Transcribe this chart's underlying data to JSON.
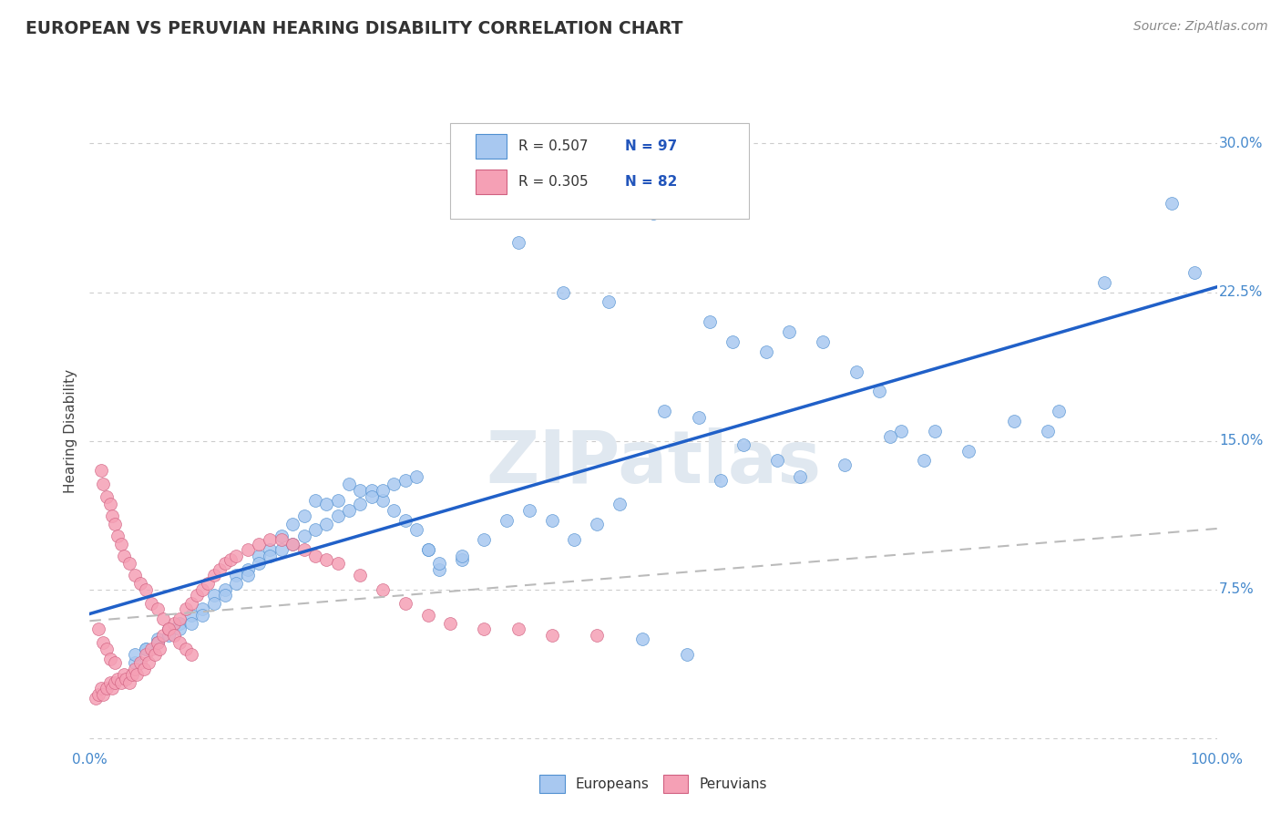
{
  "title": "EUROPEAN VS PERUVIAN HEARING DISABILITY CORRELATION CHART",
  "source": "Source: ZipAtlas.com",
  "ylabel": "Hearing Disability",
  "xlim": [
    0.0,
    1.0
  ],
  "ylim": [
    -0.005,
    0.315
  ],
  "yticks": [
    0.0,
    0.075,
    0.15,
    0.225,
    0.3
  ],
  "yticklabels_right": [
    "",
    "7.5%",
    "15.0%",
    "22.5%",
    "30.0%"
  ],
  "xticks": [
    0.0,
    0.25,
    0.5,
    0.75,
    1.0
  ],
  "xticklabels": [
    "0.0%",
    "",
    "",
    "",
    "100.0%"
  ],
  "european_R": 0.507,
  "european_N": 97,
  "peruvian_R": 0.305,
  "peruvian_N": 82,
  "european_color": "#a8c8f0",
  "european_edge_color": "#5090d0",
  "european_line_color": "#2060c8",
  "peruvian_color": "#f5a0b5",
  "peruvian_edge_color": "#d06080",
  "peruvian_line_color": "#d04060",
  "background_color": "#ffffff",
  "grid_color": "#cccccc",
  "title_color": "#333333",
  "tick_color": "#4488cc",
  "watermark": "ZIPatlas",
  "watermark_color": "#e0e8f0",
  "legend_r_color": "#333333",
  "legend_n_color": "#2255bb",
  "eu_x": [
    0.44,
    0.5,
    0.38,
    0.42,
    0.46,
    0.55,
    0.57,
    0.6,
    0.62,
    0.65,
    0.68,
    0.7,
    0.72,
    0.75,
    0.78,
    0.82,
    0.86,
    0.9,
    0.96,
    0.98,
    0.2,
    0.22,
    0.24,
    0.25,
    0.26,
    0.27,
    0.28,
    0.29,
    0.3,
    0.31,
    0.33,
    0.35,
    0.37,
    0.39,
    0.41,
    0.43,
    0.45,
    0.47,
    0.49,
    0.51,
    0.53,
    0.54,
    0.56,
    0.58,
    0.61,
    0.63,
    0.67,
    0.71,
    0.74,
    0.85,
    0.05,
    0.06,
    0.07,
    0.08,
    0.09,
    0.1,
    0.11,
    0.12,
    0.13,
    0.14,
    0.15,
    0.16,
    0.17,
    0.18,
    0.19,
    0.21,
    0.23,
    0.04,
    0.04,
    0.05,
    0.06,
    0.07,
    0.08,
    0.09,
    0.1,
    0.11,
    0.12,
    0.13,
    0.14,
    0.15,
    0.16,
    0.17,
    0.18,
    0.19,
    0.2,
    0.21,
    0.22,
    0.23,
    0.24,
    0.25,
    0.26,
    0.27,
    0.28,
    0.29,
    0.3,
    0.31,
    0.33
  ],
  "eu_y": [
    0.285,
    0.265,
    0.25,
    0.225,
    0.22,
    0.21,
    0.2,
    0.195,
    0.205,
    0.2,
    0.185,
    0.175,
    0.155,
    0.155,
    0.145,
    0.16,
    0.165,
    0.23,
    0.27,
    0.235,
    0.12,
    0.12,
    0.125,
    0.125,
    0.12,
    0.115,
    0.11,
    0.105,
    0.095,
    0.085,
    0.09,
    0.1,
    0.11,
    0.115,
    0.11,
    0.1,
    0.108,
    0.118,
    0.05,
    0.165,
    0.042,
    0.162,
    0.13,
    0.148,
    0.14,
    0.132,
    0.138,
    0.152,
    0.14,
    0.155,
    0.045,
    0.05,
    0.055,
    0.058,
    0.062,
    0.065,
    0.072,
    0.075,
    0.082,
    0.085,
    0.092,
    0.095,
    0.102,
    0.108,
    0.112,
    0.118,
    0.128,
    0.038,
    0.042,
    0.045,
    0.048,
    0.052,
    0.055,
    0.058,
    0.062,
    0.068,
    0.072,
    0.078,
    0.082,
    0.088,
    0.092,
    0.095,
    0.098,
    0.102,
    0.105,
    0.108,
    0.112,
    0.115,
    0.118,
    0.122,
    0.125,
    0.128,
    0.13,
    0.132,
    0.095,
    0.088,
    0.092
  ],
  "pe_x": [
    0.005,
    0.008,
    0.01,
    0.012,
    0.015,
    0.018,
    0.02,
    0.022,
    0.025,
    0.028,
    0.03,
    0.032,
    0.035,
    0.038,
    0.04,
    0.042,
    0.045,
    0.048,
    0.05,
    0.052,
    0.055,
    0.058,
    0.06,
    0.062,
    0.065,
    0.07,
    0.075,
    0.08,
    0.085,
    0.09,
    0.095,
    0.1,
    0.105,
    0.11,
    0.115,
    0.12,
    0.125,
    0.13,
    0.14,
    0.15,
    0.16,
    0.17,
    0.18,
    0.19,
    0.2,
    0.21,
    0.22,
    0.24,
    0.26,
    0.28,
    0.3,
    0.32,
    0.35,
    0.38,
    0.41,
    0.45,
    0.01,
    0.012,
    0.015,
    0.018,
    0.02,
    0.022,
    0.025,
    0.028,
    0.03,
    0.035,
    0.04,
    0.045,
    0.05,
    0.055,
    0.06,
    0.065,
    0.07,
    0.075,
    0.08,
    0.085,
    0.09,
    0.008,
    0.012,
    0.015,
    0.018,
    0.022
  ],
  "pe_y": [
    0.02,
    0.022,
    0.025,
    0.022,
    0.025,
    0.028,
    0.025,
    0.028,
    0.03,
    0.028,
    0.032,
    0.03,
    0.028,
    0.032,
    0.035,
    0.032,
    0.038,
    0.035,
    0.042,
    0.038,
    0.045,
    0.042,
    0.048,
    0.045,
    0.052,
    0.055,
    0.058,
    0.06,
    0.065,
    0.068,
    0.072,
    0.075,
    0.078,
    0.082,
    0.085,
    0.088,
    0.09,
    0.092,
    0.095,
    0.098,
    0.1,
    0.1,
    0.098,
    0.095,
    0.092,
    0.09,
    0.088,
    0.082,
    0.075,
    0.068,
    0.062,
    0.058,
    0.055,
    0.055,
    0.052,
    0.052,
    0.135,
    0.128,
    0.122,
    0.118,
    0.112,
    0.108,
    0.102,
    0.098,
    0.092,
    0.088,
    0.082,
    0.078,
    0.075,
    0.068,
    0.065,
    0.06,
    0.055,
    0.052,
    0.048,
    0.045,
    0.042,
    0.055,
    0.048,
    0.045,
    0.04,
    0.038
  ]
}
